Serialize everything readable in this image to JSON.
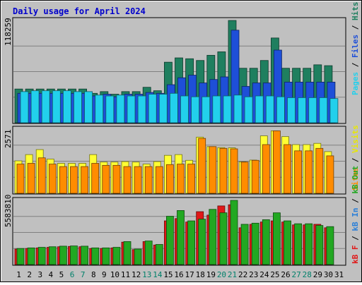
{
  "chart_data": {
    "type": "bar",
    "title": "Daily usage for April 2024",
    "categories": [
      "1",
      "2",
      "3",
      "4",
      "5",
      "6",
      "7",
      "8",
      "9",
      "10",
      "11",
      "12",
      "13",
      "14",
      "15",
      "16",
      "17",
      "18",
      "19",
      "20",
      "21",
      "22",
      "23",
      "24",
      "25",
      "26",
      "27",
      "28",
      "29",
      "30",
      "31"
    ],
    "weekend_days": [
      6,
      7,
      13,
      14,
      20,
      21,
      27,
      28
    ],
    "hits_axis_label": "118259",
    "visits_axis_label": "2571",
    "kb_axis_label": "5583810",
    "legend_top": {
      "pages": "Pages",
      "files": "Files",
      "hits": "Hits",
      "sep": " / "
    },
    "legend_mid": {
      "sites": "Sites",
      "visits": "Visits",
      "sep": " / "
    },
    "legend_bot": {
      "kb_f": "kB F",
      "kb_in": "kB In",
      "kb_out": "kB Out",
      "sep": " / "
    },
    "panels": [
      {
        "name": "hits-files-pages",
        "max": 118259,
        "series": [
          {
            "key": "hits",
            "color": "#1f7f5f",
            "values": [
              39000,
              39000,
              39000,
              39000,
              39000,
              39000,
              39000,
              34000,
              36000,
              33000,
              36000,
              36000,
              41000,
              37000,
              70000,
              75000,
              74000,
              72000,
              78000,
              82000,
              118259,
              63000,
              63000,
              72000,
              98000,
              63000,
              63000,
              63000,
              67000,
              66000,
              0
            ]
          },
          {
            "key": "files",
            "color": "#1e4fd8",
            "values": [
              34000,
              34000,
              34000,
              34000,
              34000,
              34000,
              34000,
              31000,
              33000,
              30000,
              33000,
              33000,
              35000,
              34000,
              44000,
              52000,
              55000,
              46000,
              50000,
              53000,
              107000,
              42000,
              46000,
              46000,
              84000,
              47000,
              47000,
              47000,
              47000,
              47000,
              0
            ]
          },
          {
            "key": "pages",
            "color": "#22d0ec",
            "values": [
              36000,
              37000,
              37000,
              37000,
              37000,
              36000,
              36000,
              32000,
              31000,
              32000,
              31000,
              31000,
              33000,
              33000,
              34000,
              31000,
              30000,
              30000,
              31000,
              31000,
              32000,
              30000,
              31000,
              31000,
              30000,
              29000,
              29000,
              29000,
              29000,
              28000,
              0
            ]
          }
        ]
      },
      {
        "name": "visits-sites",
        "max": 2571,
        "series": [
          {
            "key": "visits",
            "color": "#ffff33",
            "values": [
              1300,
              1550,
              1750,
              1370,
              1200,
              1200,
              1200,
              1550,
              1250,
              1250,
              1270,
              1250,
              1170,
              1270,
              1520,
              1550,
              1320,
              2250,
              1870,
              1830,
              1820,
              1260,
              1330,
              2300,
              2500,
              2270,
              1950,
              1950,
              2000,
              1670,
              0
            ]
          },
          {
            "key": "sites",
            "color": "#ff8c00",
            "values": [
              1170,
              1200,
              1420,
              1170,
              1070,
              1070,
              1070,
              1200,
              1120,
              1120,
              1070,
              1070,
              1070,
              1070,
              1150,
              1170,
              1170,
              2200,
              1870,
              1800,
              1780,
              1250,
              1320,
              1950,
              2500,
              1950,
              1700,
              1700,
              1800,
              1500,
              0
            ]
          }
        ]
      },
      {
        "name": "kb",
        "max": 5583810,
        "series": [
          {
            "key": "kb_f",
            "color": "#e01818",
            "values": [
              1350000,
              1400000,
              1450000,
              1500000,
              1550000,
              1580000,
              1550000,
              1400000,
              1400000,
              1450000,
              1950000,
              1300000,
              2000000,
              1700000,
              3800000,
              4000000,
              3700000,
              4600000,
              4300000,
              5100000,
              5200000,
              3200000,
              3500000,
              3700000,
              3800000,
              3700000,
              3450000,
              3450000,
              3500000,
              3200000,
              0
            ]
          },
          {
            "key": "kb_in",
            "color": "#22a822",
            "values": [
              1400000,
              1450000,
              1500000,
              1550000,
              1600000,
              1620000,
              1600000,
              1450000,
              1450000,
              1500000,
              2000000,
              1350000,
              2050000,
              1750000,
              4200000,
              4700000,
              3800000,
              3950000,
              4800000,
              4500000,
              5583810,
              3500000,
              3600000,
              3900000,
              4500000,
              3800000,
              3550000,
              3550000,
              3400000,
              3300000,
              0
            ]
          }
        ]
      }
    ]
  }
}
